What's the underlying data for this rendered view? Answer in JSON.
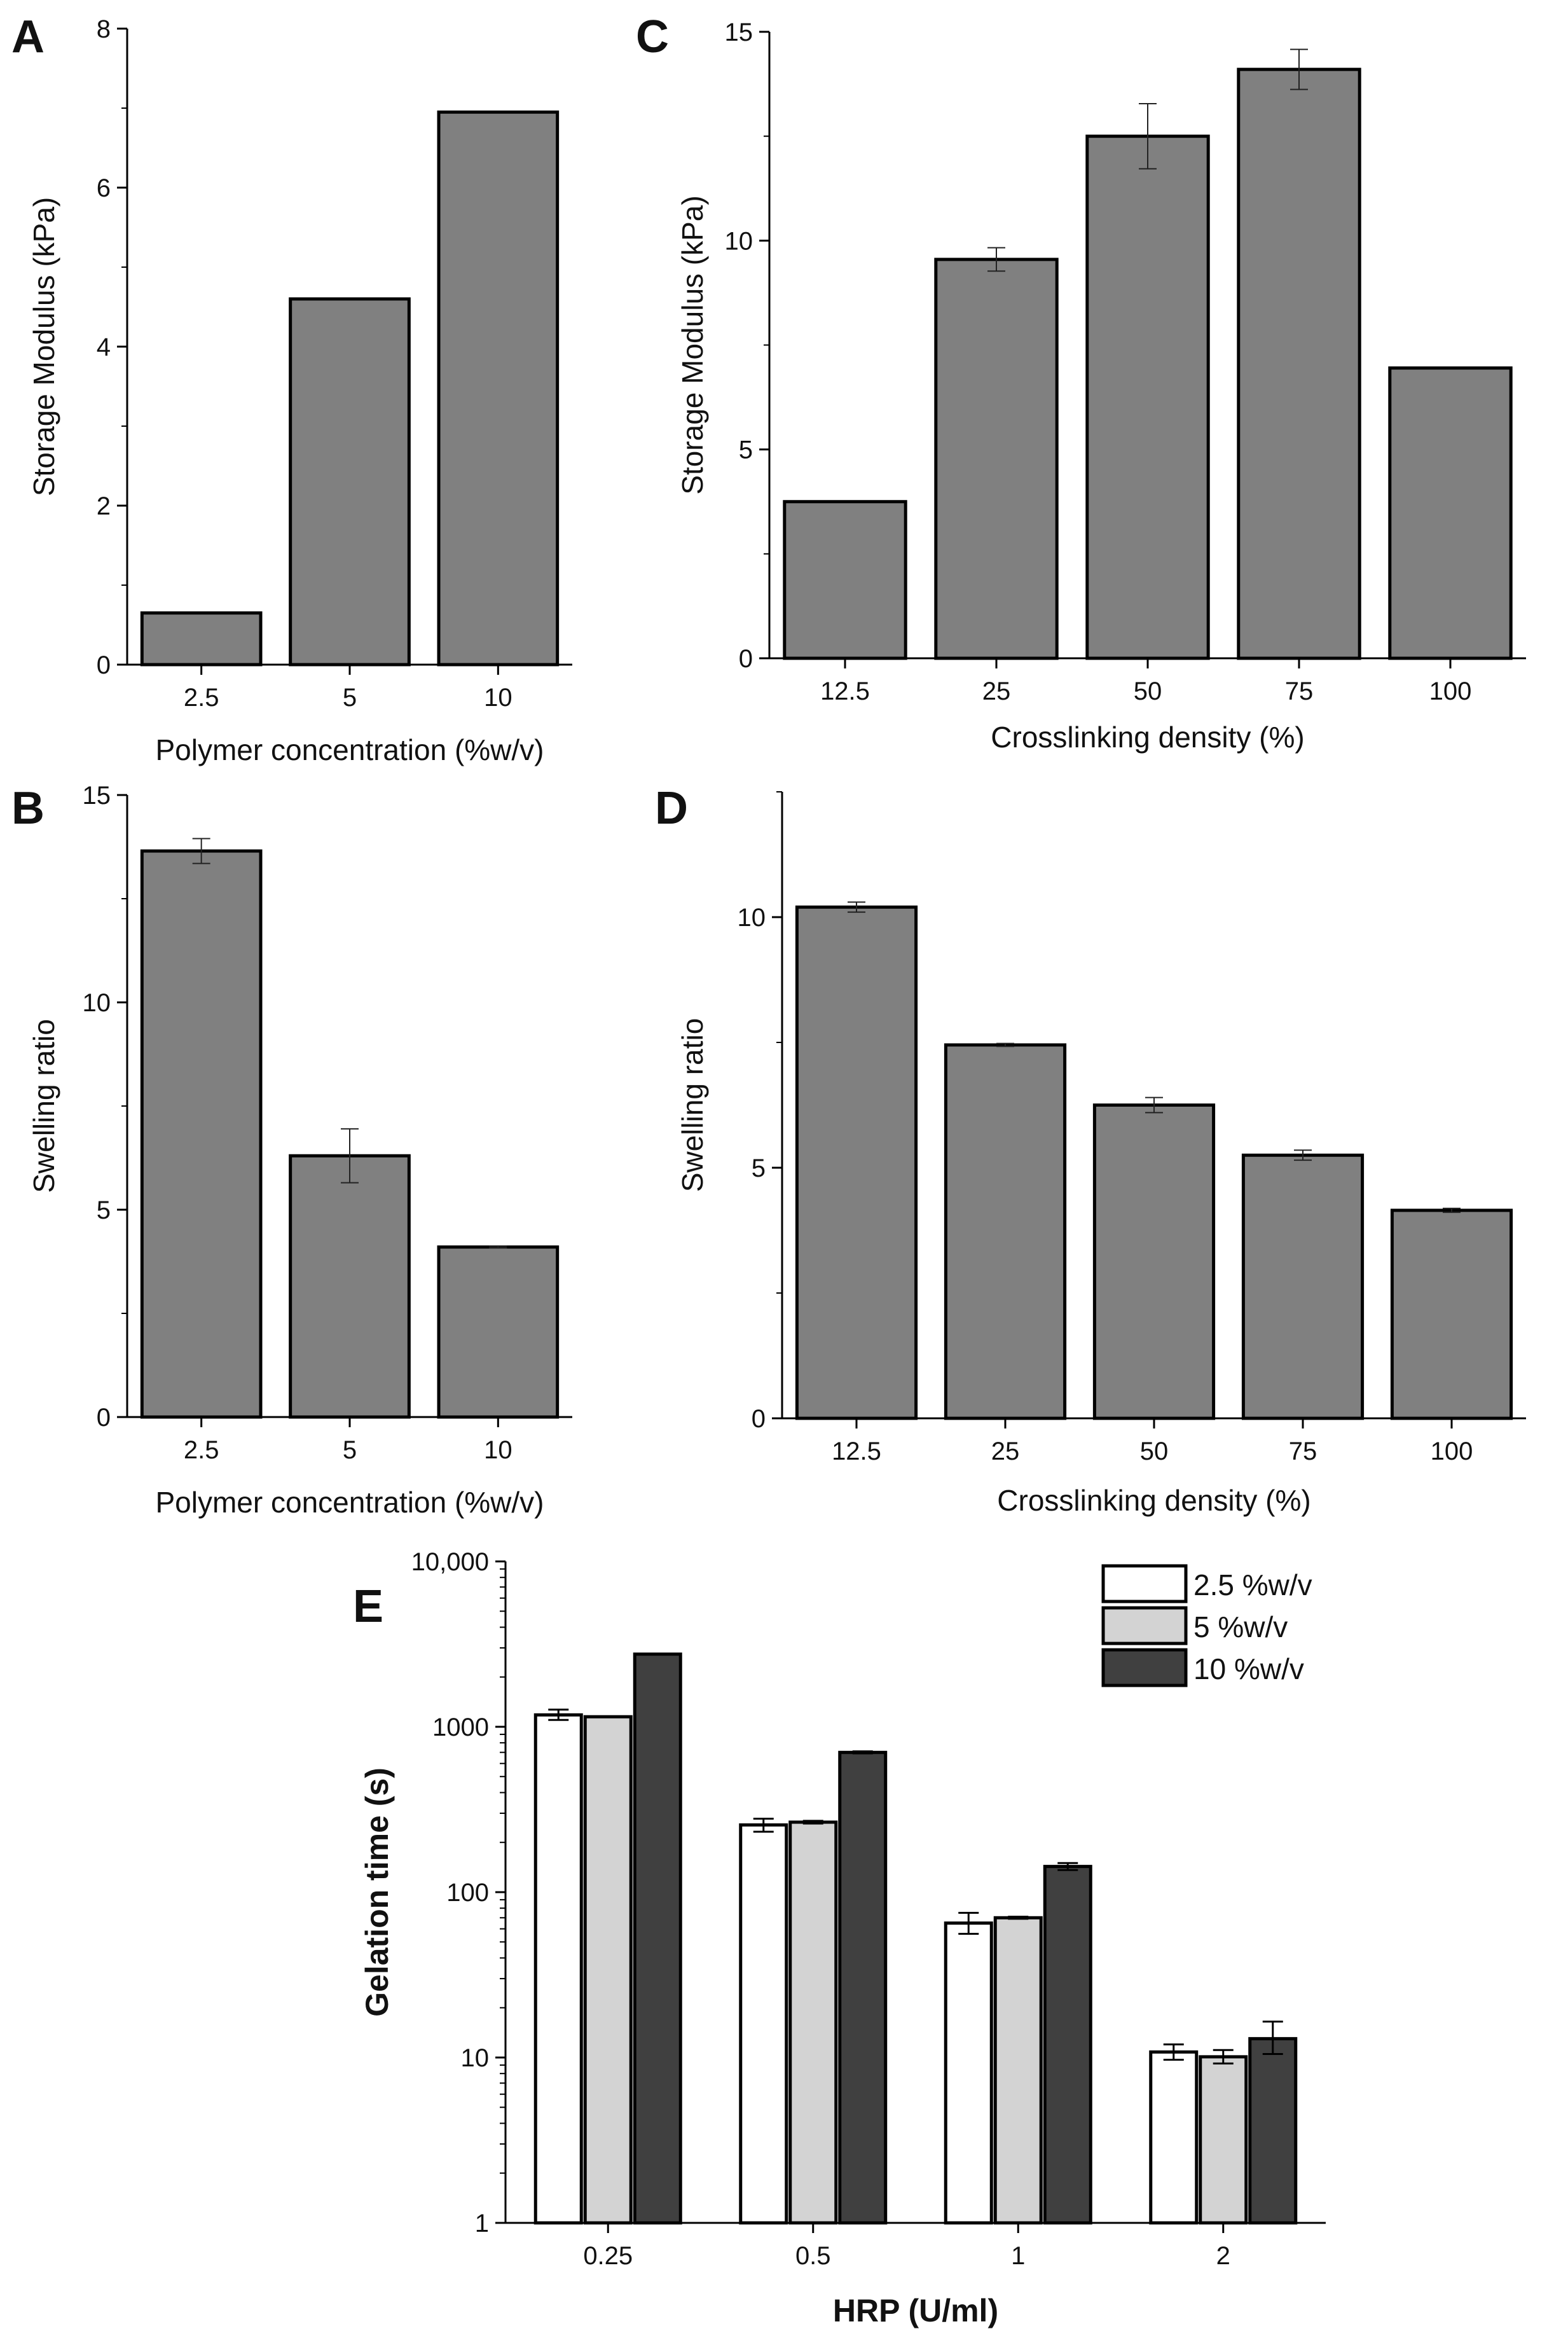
{
  "chart_data": [
    {
      "panel": "A",
      "type": "bar",
      "categories": [
        "2.5",
        "5",
        "10"
      ],
      "values": [
        0.65,
        4.6,
        6.95
      ],
      "errors": [
        0,
        0,
        0
      ],
      "xlabel": "Polymer concentration (%w/v)",
      "ylabel": "Storage Modulus (kPa)",
      "ylim": [
        0,
        8
      ],
      "yticks": [
        0,
        2,
        4,
        6,
        8
      ],
      "ytick_labels": [
        "0",
        "2",
        "4",
        "6",
        "8"
      ],
      "bar_color": "#808080"
    },
    {
      "panel": "B",
      "type": "bar",
      "categories": [
        "2.5",
        "5",
        "10"
      ],
      "values": [
        13.65,
        6.3,
        4.1
      ],
      "errors": [
        0.3,
        0.65,
        0.02
      ],
      "xlabel": "Polymer concentration (%w/v)",
      "ylabel": "Swelling ratio",
      "ylim": [
        0,
        15
      ],
      "yticks": [
        0,
        5,
        10,
        15
      ],
      "ytick_labels": [
        "0",
        "5",
        "10",
        "15"
      ],
      "bar_color": "#808080"
    },
    {
      "panel": "C",
      "type": "bar",
      "categories": [
        "12.5",
        "25",
        "50",
        "75",
        "100"
      ],
      "values": [
        3.75,
        9.55,
        12.5,
        14.1,
        6.95
      ],
      "errors": [
        0,
        0.28,
        0.78,
        0.48,
        0
      ],
      "xlabel": "Crosslinking density (%)",
      "ylabel": "Storage Modulus (kPa)",
      "ylim": [
        0,
        15
      ],
      "yticks": [
        0,
        5,
        10,
        15
      ],
      "ytick_labels": [
        "0",
        "5",
        "10",
        "15"
      ],
      "bar_color": "#808080"
    },
    {
      "panel": "D",
      "type": "bar",
      "categories": [
        "12.5",
        "25",
        "50",
        "75",
        "100"
      ],
      "values": [
        10.2,
        7.45,
        6.25,
        5.25,
        4.15
      ],
      "errors": [
        0.1,
        0.03,
        0.15,
        0.1,
        0.04
      ],
      "xlabel": "Crosslinking density (%)",
      "ylabel": "Swelling ratio",
      "ylim": [
        0,
        12.5
      ],
      "yticks": [
        0,
        5,
        10
      ],
      "ytick_labels": [
        "0",
        "5",
        "10"
      ],
      "bar_color": "#808080"
    },
    {
      "panel": "E",
      "type": "bar",
      "yscale": "log",
      "categories": [
        "0.25",
        "0.5",
        "1",
        "2"
      ],
      "series": [
        {
          "name": "2.5 %w/v",
          "color": "#ffffff",
          "values": [
            1180,
            255,
            65,
            10.8
          ],
          "err_low": [
            1100,
            232,
            56,
            9.7
          ],
          "err_high": [
            1270,
            278,
            75,
            12.0
          ]
        },
        {
          "name": "5 %w/v",
          "color": "#d3d3d3",
          "values": [
            1150,
            265,
            70,
            10.1
          ],
          "err_low": [
            1150,
            260,
            69,
            9.2
          ],
          "err_high": [
            1150,
            270,
            71,
            11.1
          ]
        },
        {
          "name": "10 %w/v",
          "color": "#404040",
          "values": [
            2750,
            700,
            143,
            13.0
          ],
          "err_low": [
            2750,
            690,
            136,
            10.5
          ],
          "err_high": [
            2750,
            710,
            150,
            16.5
          ]
        }
      ],
      "xlabel": "HRP (U/ml)",
      "ylabel": "Gelation time (s)",
      "ylim": [
        1,
        10000
      ],
      "yticks": [
        1,
        10,
        100,
        1000,
        10000
      ],
      "ytick_labels": [
        "1",
        "10",
        "100",
        "1000",
        "10,000"
      ]
    }
  ]
}
